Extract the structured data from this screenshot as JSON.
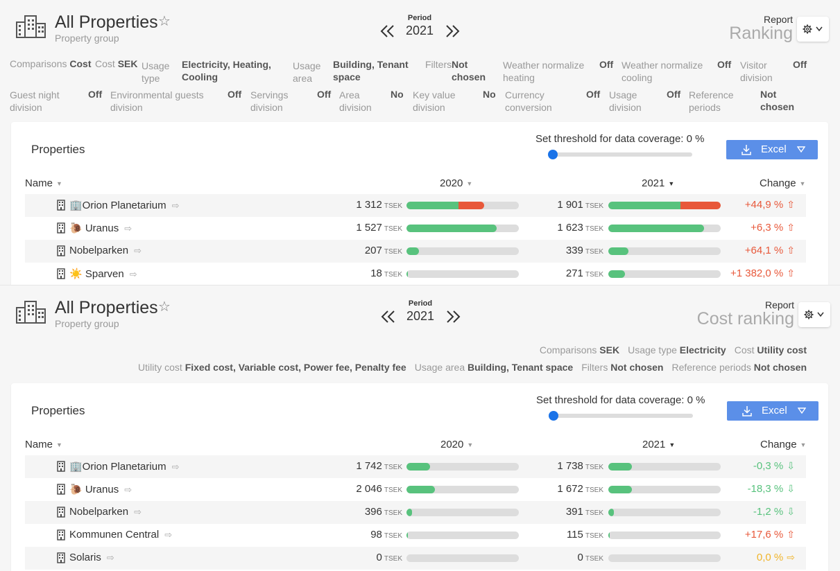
{
  "panels": [
    {
      "title": "All Properties",
      "subtitle": "Property group",
      "period_label": "Period",
      "period_value": "2021",
      "report_label": "Report",
      "report_value": "Ranking",
      "filters": {
        "comparisons_l": "Comparisons",
        "comparisons_v": "Cost",
        "cost_l": "Cost",
        "cost_v": "SEK",
        "usage_type_l1": "Usage",
        "usage_type_l2": "type",
        "usage_type_v1": "Electricity, Heating,",
        "usage_type_v2": "Cooling",
        "usage_area_l1": "Usage",
        "usage_area_l2": "area",
        "usage_area_v1": "Building, Tenant",
        "usage_area_v2": "space",
        "filters_l": "Filters",
        "filters_v1": "Not",
        "filters_v2": "chosen",
        "wn_heating_l1": "Weather normalize",
        "wn_heating_l2": "heating",
        "wn_heating_v": "Off",
        "wn_cooling_l1": "Weather normalize",
        "wn_cooling_l2": "cooling",
        "wn_cooling_v": "Off",
        "visitor_l1": "Visitor",
        "visitor_l2": "division",
        "visitor_v": "Off",
        "guest_l1": "Guest night",
        "guest_l2": "division",
        "guest_v": "Off",
        "env_l1": "Environmental guests",
        "env_l2": "division",
        "env_v": "Off",
        "serv_l1": "Servings",
        "serv_l2": "division",
        "serv_v": "Off",
        "area_l1": "Area",
        "area_l2": "division",
        "area_v": "No",
        "key_l1": "Key value",
        "key_l2": "division",
        "key_v": "No",
        "curr_l1": "Currency",
        "curr_l2": "conversion",
        "curr_v": "Off",
        "ud_l1": "Usage",
        "ud_l2": "division",
        "ud_v": "Off",
        "ref_l1": "Reference",
        "ref_l2": "periods",
        "ref_v1": "Not",
        "ref_v2": "chosen"
      },
      "card": {
        "title": "Properties",
        "threshold_label": "Set threshold for data coverage: 0 %",
        "threshold_value": 0,
        "excel_label": "Excel",
        "col_name": "Name",
        "col_a": "2020",
        "col_b": "2021",
        "col_change": "Change"
      },
      "rows": [
        {
          "name": "🏢Orion Planetarium",
          "v2020": "1 312",
          "v2021": "1 901",
          "unit": "TSEK",
          "change": "+44,9 %",
          "dir": "up",
          "b2020": [
            0.46,
            0.23
          ],
          "b2021": [
            0.64,
            0.36
          ]
        },
        {
          "name": "🐌 Uranus",
          "v2020": "1 527",
          "v2021": "1 623",
          "unit": "TSEK",
          "change": "+6,3 %",
          "dir": "up",
          "b2020": [
            0.8,
            0
          ],
          "b2021": [
            0.85,
            0
          ]
        },
        {
          "name": "Nobelparken",
          "v2020": "207",
          "v2021": "339",
          "unit": "TSEK",
          "change": "+64,1 %",
          "dir": "up",
          "b2020": [
            0.11,
            0
          ],
          "b2021": [
            0.18,
            0
          ]
        },
        {
          "name": "☀️ Sparven",
          "v2020": "18",
          "v2021": "271",
          "unit": "TSEK",
          "change": "+1 382,0 %",
          "dir": "up",
          "b2020": [
            0.01,
            0
          ],
          "b2021": [
            0.15,
            0
          ]
        }
      ]
    },
    {
      "title": "All Properties",
      "subtitle": "Property group",
      "period_label": "Period",
      "period_value": "2021",
      "report_label": "Report",
      "report_value": "Cost ranking",
      "filter_line1": [
        {
          "l": "Comparisons",
          "v": "SEK"
        },
        {
          "l": "Usage type",
          "v": "Electricity"
        },
        {
          "l": "Cost",
          "v": "Utility cost"
        }
      ],
      "filter_line2": [
        {
          "l": "Utility cost",
          "v": "Fixed cost, Variable cost, Power fee, Penalty fee"
        },
        {
          "l": "Usage area",
          "v": "Building, Tenant space"
        },
        {
          "l": "Filters",
          "v": "Not chosen"
        },
        {
          "l": "Reference periods",
          "v": "Not chosen"
        }
      ],
      "card": {
        "title": "Properties",
        "threshold_label": "Set threshold for data coverage: 0 %",
        "threshold_value": 0,
        "excel_label": "Excel",
        "col_name": "Name",
        "col_a": "2020",
        "col_b": "2021",
        "col_change": "Change"
      },
      "rows": [
        {
          "name": "🏢Orion Planetarium",
          "v2020": "1 742",
          "v2021": "1 738",
          "unit": "TSEK",
          "change": "-0,3 %",
          "dir": "down",
          "b2020": [
            0.21,
            0
          ],
          "b2021": [
            0.21,
            0
          ]
        },
        {
          "name": "🐌 Uranus",
          "v2020": "2 046",
          "v2021": "1 672",
          "unit": "TSEK",
          "change": "-18,3 %",
          "dir": "down",
          "b2020": [
            0.25,
            0
          ],
          "b2021": [
            0.21,
            0
          ]
        },
        {
          "name": "Nobelparken",
          "v2020": "396",
          "v2021": "391",
          "unit": "TSEK",
          "change": "-1,2 %",
          "dir": "down",
          "b2020": [
            0.05,
            0
          ],
          "b2021": [
            0.05,
            0
          ]
        },
        {
          "name": "Kommunen Central",
          "v2020": "98",
          "v2021": "115",
          "unit": "TSEK",
          "change": "+17,6 %",
          "dir": "up",
          "b2020": [
            0.012,
            0
          ],
          "b2021": [
            0.015,
            0
          ]
        },
        {
          "name": "Solaris",
          "v2020": "0",
          "v2021": "0",
          "unit": "TSEK",
          "change": "0,0 %",
          "dir": "flat",
          "b2020": [
            0,
            0
          ],
          "b2021": [
            0,
            0
          ]
        }
      ]
    }
  ],
  "icons": {
    "building": "building-icon",
    "star": "star-icon",
    "chevrons": "double-chevron-icon",
    "gear": "gear-icon",
    "download": "download-icon",
    "external": "external-link-icon"
  },
  "colors": {
    "green": "#58c27d",
    "red": "#e8583a",
    "up_text": "#e8583a",
    "down_text": "#58c27d",
    "flat_text": "#f0b429",
    "excel": "#5b8fe8",
    "slider_thumb": "#1a73e8"
  }
}
